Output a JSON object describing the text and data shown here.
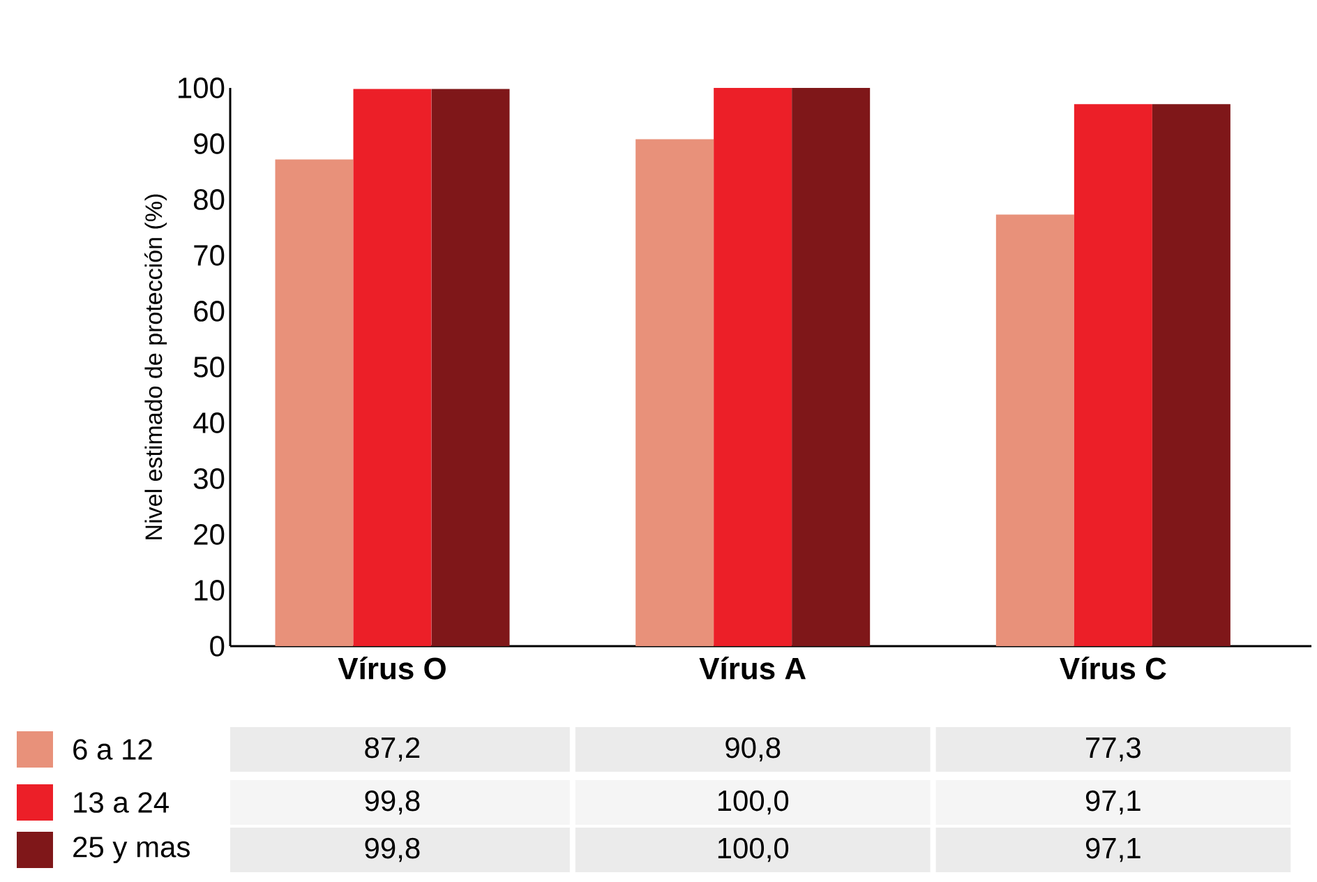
{
  "chart_data": {
    "type": "bar",
    "ylabel": "Nivel estimado de protección (%)",
    "categories": [
      "Vírus O",
      "Vírus A",
      "Vírus C"
    ],
    "series": [
      {
        "name": "6 a 12",
        "color": "#e8917a",
        "values": [
          87.2,
          90.8,
          77.3
        ],
        "value_labels": [
          "87,2",
          "90,8",
          "77,3"
        ]
      },
      {
        "name": "13 a 24",
        "color": "#ec1f28",
        "values": [
          99.8,
          100.0,
          97.1
        ],
        "value_labels": [
          "99,8",
          "100,0",
          "97,1"
        ]
      },
      {
        "name": "25 y mas",
        "color": "#7f1719",
        "values": [
          99.8,
          100.0,
          97.1
        ],
        "value_labels": [
          "99,8",
          "100,0",
          "97,1"
        ]
      }
    ],
    "ylim": [
      0,
      100
    ],
    "yticks": [
      0,
      10,
      20,
      30,
      40,
      50,
      60,
      70,
      80,
      90,
      100
    ],
    "grid": false,
    "legend": "bottom left"
  }
}
